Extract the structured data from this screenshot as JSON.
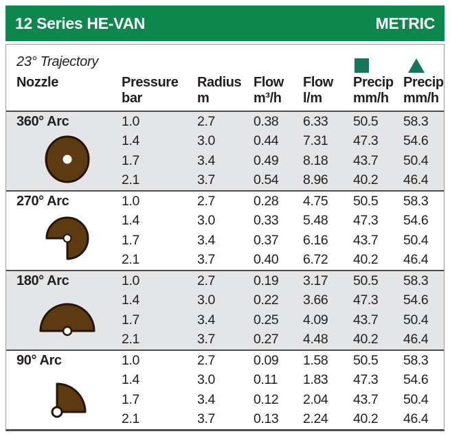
{
  "header": {
    "title": "12 Series HE-VAN",
    "unit_label": "METRIC",
    "bar_color": "#0d874d"
  },
  "subheader": {
    "trajectory": "23° Trajectory",
    "marker_square": "square-marker",
    "marker_triangle": "triangle-marker",
    "marker_color": "#17755c"
  },
  "columns": [
    {
      "label": "Nozzle",
      "sub": ""
    },
    {
      "label": "Pressure",
      "sub": "bar"
    },
    {
      "label": "Radius",
      "sub": "m"
    },
    {
      "label": "Flow",
      "sub": "m³/h"
    },
    {
      "label": "Flow",
      "sub": "l/m"
    },
    {
      "label": "Precip",
      "sub": "mm/h",
      "marker": "square"
    },
    {
      "label": "Precip",
      "sub": "mm/h",
      "marker": "triangle"
    }
  ],
  "groups": [
    {
      "id": "360",
      "name": "360° Arc",
      "icon": "arc-360",
      "rows": [
        [
          "1.0",
          "2.7",
          "0.38",
          "6.33",
          "50.5",
          "58.3"
        ],
        [
          "1.4",
          "3.0",
          "0.44",
          "7.31",
          "47.3",
          "54.6"
        ],
        [
          "1.7",
          "3.4",
          "0.49",
          "8.18",
          "43.7",
          "50.4"
        ],
        [
          "2.1",
          "3.7",
          "0.54",
          "8.96",
          "40.2",
          "46.4"
        ]
      ]
    },
    {
      "id": "270",
      "name": "270° Arc",
      "icon": "arc-270",
      "rows": [
        [
          "1.0",
          "2.7",
          "0.28",
          "4.75",
          "50.5",
          "58.3"
        ],
        [
          "1.4",
          "3.0",
          "0.33",
          "5.48",
          "47.3",
          "54.6"
        ],
        [
          "1.7",
          "3.4",
          "0.37",
          "6.16",
          "43.7",
          "50.4"
        ],
        [
          "2.1",
          "3.7",
          "0.40",
          "6.72",
          "40.2",
          "46.4"
        ]
      ]
    },
    {
      "id": "180",
      "name": "180° Arc",
      "icon": "arc-180",
      "rows": [
        [
          "1.0",
          "2.7",
          "0.19",
          "3.17",
          "50.5",
          "58.3"
        ],
        [
          "1.4",
          "3.0",
          "0.22",
          "3.66",
          "47.3",
          "54.6"
        ],
        [
          "1.7",
          "3.4",
          "0.25",
          "4.09",
          "43.7",
          "50.4"
        ],
        [
          "2.1",
          "3.7",
          "0.27",
          "4.48",
          "40.2",
          "46.4"
        ]
      ]
    },
    {
      "id": "90",
      "name": "90° Arc",
      "icon": "arc-90",
      "rows": [
        [
          "1.0",
          "2.7",
          "0.09",
          "1.58",
          "50.5",
          "58.3"
        ],
        [
          "1.4",
          "3.0",
          "0.11",
          "1.83",
          "47.3",
          "54.6"
        ],
        [
          "1.7",
          "3.4",
          "0.12",
          "2.04",
          "43.7",
          "50.4"
        ],
        [
          "2.1",
          "3.7",
          "0.13",
          "2.24",
          "40.2",
          "46.4"
        ]
      ]
    }
  ],
  "colors": {
    "icon_fill": "#5e3a10",
    "icon_outline": "#241507",
    "row_shade": "#e4e5e6",
    "rule_dark": "#4c4c4c",
    "text": "#231f20"
  },
  "chart_data": {
    "type": "table",
    "title": "12 Series HE-VAN — METRIC — 23° Trajectory",
    "columns": [
      "Nozzle",
      "Pressure bar",
      "Radius m",
      "Flow m³/h",
      "Flow l/m",
      "Precip mm/h (square)",
      "Precip mm/h (triangle)"
    ],
    "rows": [
      [
        "360° Arc",
        1.0,
        2.7,
        0.38,
        6.33,
        50.5,
        58.3
      ],
      [
        "360° Arc",
        1.4,
        3.0,
        0.44,
        7.31,
        47.3,
        54.6
      ],
      [
        "360° Arc",
        1.7,
        3.4,
        0.49,
        8.18,
        43.7,
        50.4
      ],
      [
        "360° Arc",
        2.1,
        3.7,
        0.54,
        8.96,
        40.2,
        46.4
      ],
      [
        "270° Arc",
        1.0,
        2.7,
        0.28,
        4.75,
        50.5,
        58.3
      ],
      [
        "270° Arc",
        1.4,
        3.0,
        0.33,
        5.48,
        47.3,
        54.6
      ],
      [
        "270° Arc",
        1.7,
        3.4,
        0.37,
        6.16,
        43.7,
        50.4
      ],
      [
        "270° Arc",
        2.1,
        3.7,
        0.4,
        6.72,
        40.2,
        46.4
      ],
      [
        "180° Arc",
        1.0,
        2.7,
        0.19,
        3.17,
        50.5,
        58.3
      ],
      [
        "180° Arc",
        1.4,
        3.0,
        0.22,
        3.66,
        47.3,
        54.6
      ],
      [
        "180° Arc",
        1.7,
        3.4,
        0.25,
        4.09,
        43.7,
        50.4
      ],
      [
        "180° Arc",
        2.1,
        3.7,
        0.27,
        4.48,
        40.2,
        46.4
      ],
      [
        "90° Arc",
        1.0,
        2.7,
        0.09,
        1.58,
        50.5,
        58.3
      ],
      [
        "90° Arc",
        1.4,
        3.0,
        0.11,
        1.83,
        47.3,
        54.6
      ],
      [
        "90° Arc",
        1.7,
        3.4,
        0.12,
        2.04,
        43.7,
        50.4
      ],
      [
        "90° Arc",
        2.1,
        3.7,
        0.13,
        2.24,
        40.2,
        46.4
      ]
    ]
  }
}
